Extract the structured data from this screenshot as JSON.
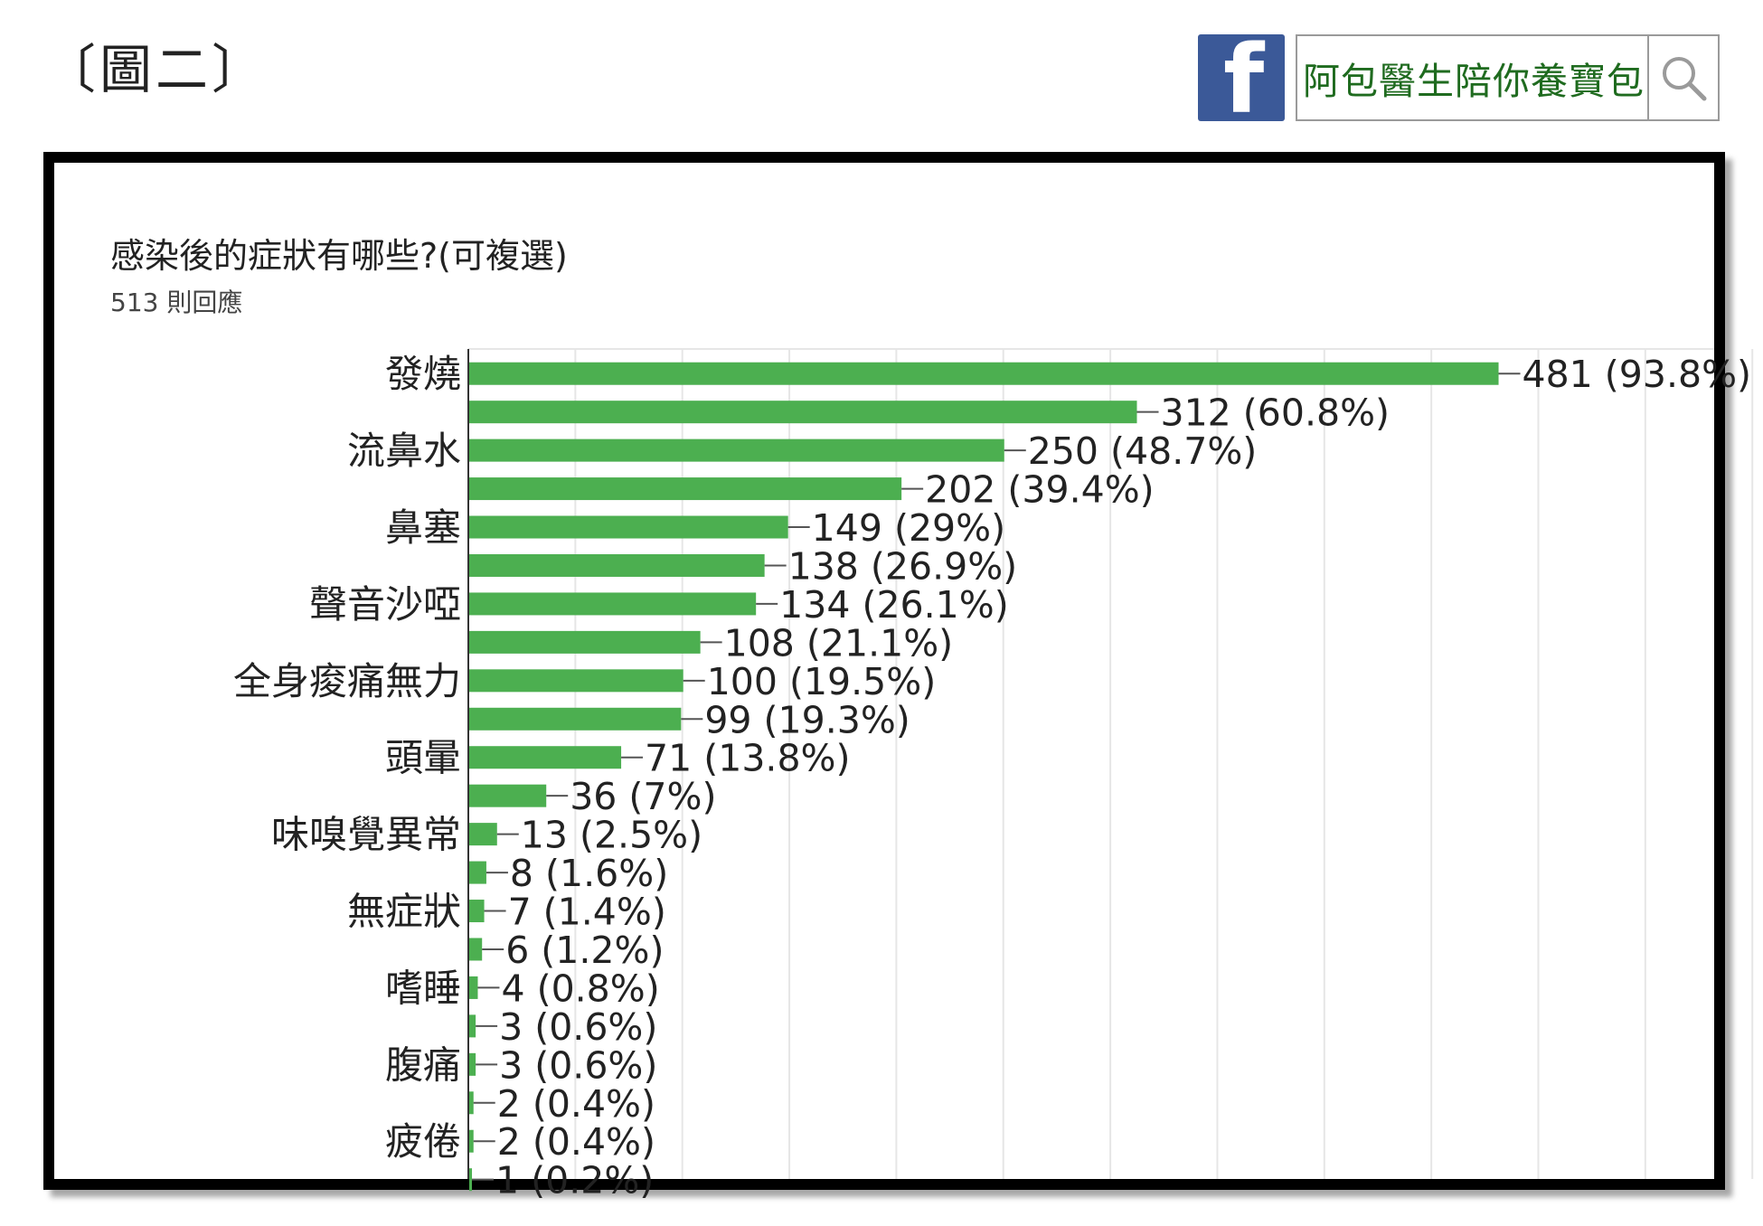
{
  "figure_label": "〔圖二〕",
  "facebook": {
    "logo_glyph": "f",
    "page_name": "阿包醫生陪你養寶包",
    "search_icon": "search-icon",
    "brand_color": "#3b5998"
  },
  "chart_data": {
    "type": "bar",
    "orientation": "horizontal",
    "title": "感染後的症狀有哪些?(可複選)",
    "subtitle": "513 則回應",
    "bar_color": "#4caf50",
    "xlim": [
      0,
      513
    ],
    "grid": true,
    "bars": [
      {
        "category": "發燒",
        "value": 481,
        "label": "481 (93.8%)"
      },
      {
        "category": "",
        "value": 312,
        "label": "312 (60.8%)"
      },
      {
        "category": "流鼻水",
        "value": 250,
        "label": "250 (48.7%)"
      },
      {
        "category": "",
        "value": 202,
        "label": "202 (39.4%)"
      },
      {
        "category": "鼻塞",
        "value": 149,
        "label": "149 (29%)"
      },
      {
        "category": "",
        "value": 138,
        "label": "138 (26.9%)"
      },
      {
        "category": "聲音沙啞",
        "value": 134,
        "label": "134 (26.1%)"
      },
      {
        "category": "",
        "value": 108,
        "label": "108 (21.1%)"
      },
      {
        "category": "全身痠痛無力",
        "value": 100,
        "label": "100 (19.5%)"
      },
      {
        "category": "",
        "value": 99,
        "label": "99 (19.3%)"
      },
      {
        "category": "頭暈",
        "value": 71,
        "label": "71 (13.8%)"
      },
      {
        "category": "",
        "value": 36,
        "label": "36 (7%)"
      },
      {
        "category": "味嗅覺異常",
        "value": 13,
        "label": "13 (2.5%)"
      },
      {
        "category": "",
        "value": 8,
        "label": "8 (1.6%)"
      },
      {
        "category": "無症狀",
        "value": 7,
        "label": "7 (1.4%)"
      },
      {
        "category": "",
        "value": 6,
        "label": "6 (1.2%)"
      },
      {
        "category": "嗜睡",
        "value": 4,
        "label": "4 (0.8%)"
      },
      {
        "category": "",
        "value": 3,
        "label": "3 (0.6%)"
      },
      {
        "category": "腹痛",
        "value": 3,
        "label": "3 (0.6%)"
      },
      {
        "category": "",
        "value": 2,
        "label": "2 (0.4%)"
      },
      {
        "category": "疲倦",
        "value": 2,
        "label": "2 (0.4%)"
      },
      {
        "category": "",
        "value": 1,
        "label": "1 (0.2%)"
      }
    ]
  }
}
